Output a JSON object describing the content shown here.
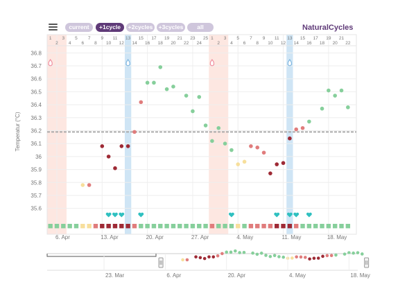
{
  "toolbar": {
    "buttons": [
      {
        "label": "current",
        "active": false
      },
      {
        "label": "+1cycle",
        "active": true
      },
      {
        "label": "+2cycles",
        "active": false
      },
      {
        "label": "+3cycles",
        "active": false
      },
      {
        "label": "all",
        "active": false
      }
    ],
    "brand": "NaturalCycles",
    "menu_icon": "hamburger-menu-icon"
  },
  "colors": {
    "period_band": "#fde7e1",
    "ovulation_band": "#cfe5f5",
    "green": "#86cf9b",
    "red_light": "#e07c7c",
    "red_dark": "#9e2a35",
    "yellow": "#f7df9c",
    "heart": "#2fc0c0",
    "coverline": "#aaaaaa"
  },
  "chart_data": {
    "type": "scatter",
    "ylabel": "Temperatur (°C)",
    "ylim": [
      35.55,
      36.85
    ],
    "yticks": [
      "35.6",
      "35.7",
      "35.8",
      "35.9",
      "36",
      "36.1",
      "36.2",
      "36.3",
      "36.4",
      "36.5",
      "36.6",
      "36.7",
      "36.8"
    ],
    "coverline": 36.19,
    "x_start": "2015-04-05",
    "x_end": "2015-05-22",
    "date_ticks": [
      {
        "day": 1,
        "label": "6. Apr"
      },
      {
        "day": 8,
        "label": "13. Apr"
      },
      {
        "day": 15,
        "label": "20. Apr"
      },
      {
        "day": 22,
        "label": "27. Apr"
      },
      {
        "day": 29,
        "label": "4. May"
      },
      {
        "day": 36,
        "label": "11. May"
      },
      {
        "day": 43,
        "label": "18. May"
      }
    ],
    "cycle_days_top": [
      "1",
      "",
      "3",
      "",
      "5",
      "",
      "7",
      "",
      "9",
      "",
      "11",
      "",
      "13",
      "",
      "15",
      "",
      "17",
      "",
      "19",
      "",
      "21",
      "",
      "23",
      "",
      "25",
      "1",
      "",
      "3",
      "",
      "5",
      "",
      "7",
      "",
      "9",
      "",
      "11",
      "",
      "13",
      "",
      "15",
      "",
      "17",
      "",
      "19",
      "",
      "21",
      ""
    ],
    "cycle_days_bottom": [
      "",
      "2",
      "",
      "4",
      "",
      "6",
      "",
      "8",
      "",
      "10",
      "",
      "12",
      "",
      "14",
      "",
      "16",
      "",
      "18",
      "",
      "20",
      "",
      "22",
      "",
      "24",
      "",
      "",
      "2",
      "",
      "4",
      "",
      "6",
      "",
      "8",
      "",
      "10",
      "",
      "12",
      "",
      "14",
      "",
      "16",
      "",
      "18",
      "",
      "20",
      "",
      "22"
    ],
    "period_bands": [
      [
        0,
        2
      ],
      [
        25,
        27
      ]
    ],
    "ovulation_days": [
      12,
      37
    ],
    "ovulation_markers": [
      {
        "day": 0,
        "type": "period"
      },
      {
        "day": 12,
        "type": "ovulation"
      },
      {
        "day": 25,
        "type": "period"
      },
      {
        "day": 37,
        "type": "ovulation"
      }
    ],
    "points": [
      {
        "day": 5,
        "temp": 35.78,
        "c": "yellow"
      },
      {
        "day": 6,
        "temp": 35.78,
        "c": "red_light"
      },
      {
        "day": 8,
        "temp": 36.08,
        "c": "red_dark"
      },
      {
        "day": 9,
        "temp": 36.0,
        "c": "red_dark"
      },
      {
        "day": 10,
        "temp": 35.91,
        "c": "red_dark"
      },
      {
        "day": 11,
        "temp": 36.08,
        "c": "red_dark"
      },
      {
        "day": 12,
        "temp": 36.08,
        "c": "red_dark"
      },
      {
        "day": 13,
        "temp": 36.19,
        "c": "red_light"
      },
      {
        "day": 14,
        "temp": 36.42,
        "c": "red_light"
      },
      {
        "day": 15,
        "temp": 36.57,
        "c": "green"
      },
      {
        "day": 16,
        "temp": 36.57,
        "c": "green"
      },
      {
        "day": 17,
        "temp": 36.69,
        "c": "green"
      },
      {
        "day": 18,
        "temp": 36.52,
        "c": "green"
      },
      {
        "day": 19,
        "temp": 36.54,
        "c": "green"
      },
      {
        "day": 21,
        "temp": 36.47,
        "c": "green"
      },
      {
        "day": 22,
        "temp": 36.35,
        "c": "green"
      },
      {
        "day": 23,
        "temp": 36.46,
        "c": "green"
      },
      {
        "day": 24,
        "temp": 36.24,
        "c": "green"
      },
      {
        "day": 25,
        "temp": 36.12,
        "c": "green"
      },
      {
        "day": 26,
        "temp": 36.22,
        "c": "green"
      },
      {
        "day": 27,
        "temp": 36.1,
        "c": "green"
      },
      {
        "day": 28,
        "temp": 36.05,
        "c": "green"
      },
      {
        "day": 29,
        "temp": 35.94,
        "c": "yellow"
      },
      {
        "day": 30,
        "temp": 35.96,
        "c": "yellow"
      },
      {
        "day": 31,
        "temp": 36.08,
        "c": "red_light"
      },
      {
        "day": 32,
        "temp": 36.07,
        "c": "red_light"
      },
      {
        "day": 33,
        "temp": 36.03,
        "c": "red_light"
      },
      {
        "day": 34,
        "temp": 35.87,
        "c": "red_dark"
      },
      {
        "day": 35,
        "temp": 35.94,
        "c": "red_dark"
      },
      {
        "day": 36,
        "temp": 35.95,
        "c": "red_dark"
      },
      {
        "day": 37,
        "temp": 36.14,
        "c": "red_dark"
      },
      {
        "day": 38,
        "temp": 36.21,
        "c": "red_light"
      },
      {
        "day": 39,
        "temp": 36.22,
        "c": "red_light"
      },
      {
        "day": 40,
        "temp": 36.27,
        "c": "green"
      },
      {
        "day": 42,
        "temp": 36.37,
        "c": "green"
      },
      {
        "day": 43,
        "temp": 36.51,
        "c": "green"
      },
      {
        "day": 44,
        "temp": 36.47,
        "c": "green"
      },
      {
        "day": 45,
        "temp": 36.51,
        "c": "green"
      },
      {
        "day": 46,
        "temp": 36.38,
        "c": "green"
      }
    ],
    "hearts": [
      9,
      10,
      11,
      14,
      28,
      35,
      37,
      38,
      40
    ],
    "day_squares": [
      "green",
      "green",
      "green",
      "green",
      "green",
      "yellow",
      "yellow",
      "red_light",
      "red_dark",
      "red_dark",
      "red_dark",
      "red_dark",
      "red_dark",
      "red_light",
      "green",
      "green",
      "green",
      "green",
      "green",
      "green",
      "green",
      "green",
      "green",
      "green",
      "green",
      "red_light",
      "green",
      "green",
      "green",
      "yellow",
      "green",
      "red_light",
      "red_light",
      "red_light",
      "red_light",
      "red_dark",
      "red_dark",
      "red_dark",
      "red_light",
      "green",
      "green",
      "green",
      "green",
      "green",
      "green",
      "green",
      "green"
    ],
    "navigator": {
      "date_ticks": [
        {
          "label": "23. Mar",
          "date": "2015-03-23"
        },
        {
          "label": "6. Apr",
          "date": "2015-04-06"
        },
        {
          "label": "20. Apr",
          "date": "2015-04-20"
        },
        {
          "label": "4. May",
          "date": "2015-05-04"
        },
        {
          "label": "18. May",
          "date": "2015-05-18"
        }
      ]
    }
  }
}
